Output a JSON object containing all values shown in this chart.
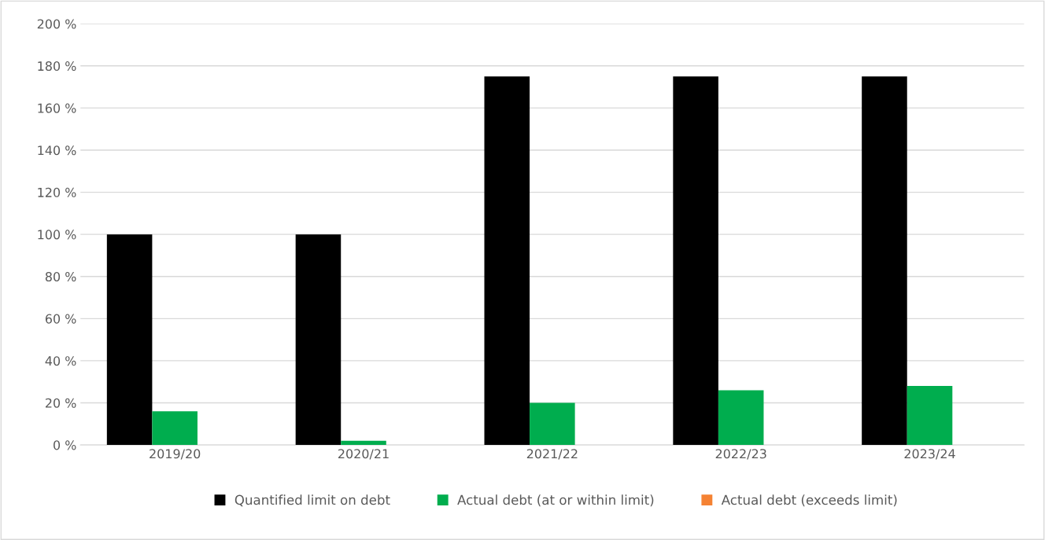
{
  "chart_data": {
    "type": "bar",
    "categories": [
      "2019/20",
      "2020/21",
      "2021/22",
      "2022/23",
      "2023/24"
    ],
    "series": [
      {
        "name": "Quantified limit on debt",
        "color": "#000000",
        "values": [
          100,
          100,
          175,
          175,
          175
        ]
      },
      {
        "name": "Actual debt (at or within limit)",
        "color": "#00ad4e",
        "values": [
          16,
          2,
          20,
          26,
          28
        ]
      },
      {
        "name": "Actual debt (exceeds limit)",
        "color": "#f58233",
        "values": [
          null,
          null,
          null,
          null,
          null
        ]
      }
    ],
    "ylim": [
      0,
      200
    ],
    "yticks": [
      {
        "value": 0,
        "label": "0 %"
      },
      {
        "value": 20,
        "label": "20 %"
      },
      {
        "value": 40,
        "label": "40 %"
      },
      {
        "value": 60,
        "label": "60 %"
      },
      {
        "value": 80,
        "label": "80 %"
      },
      {
        "value": 100,
        "label": "100 %"
      },
      {
        "value": 120,
        "label": "120 %"
      },
      {
        "value": 140,
        "label": "140 %"
      },
      {
        "value": 160,
        "label": "160 %"
      },
      {
        "value": 180,
        "label": "180 %"
      },
      {
        "value": 200,
        "label": "200 %"
      }
    ],
    "grid": "y",
    "legend": "bottom"
  }
}
